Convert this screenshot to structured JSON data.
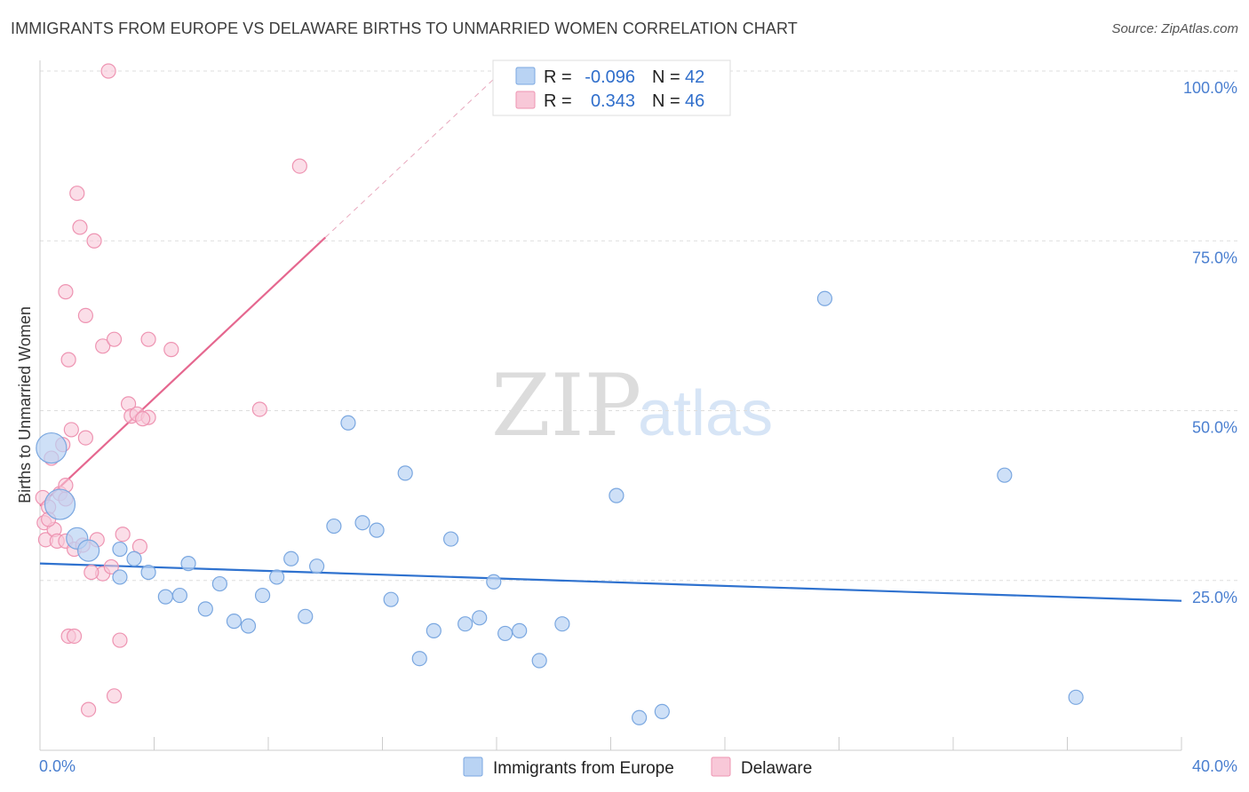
{
  "header": {
    "title": "IMMIGRANTS FROM EUROPE VS DELAWARE BIRTHS TO UNMARRIED WOMEN CORRELATION CHART",
    "source": "Source: ZipAtlas.com"
  },
  "watermark": {
    "zip": "ZIP",
    "atlas": "atlas"
  },
  "colors": {
    "blue_fill": "#b9d3f3",
    "blue_stroke": "#7aa7e0",
    "blue_line": "#2f72cf",
    "pink_fill": "#f8c8d8",
    "pink_stroke": "#ee94b2",
    "pink_line": "#e5678f",
    "tick_text": "#4a7fd0",
    "grid": "#dddddd"
  },
  "legend": {
    "rows": [
      {
        "r_label": "R =",
        "r_value": "-0.096",
        "n_label": "N =",
        "n_value": "42"
      },
      {
        "r_label": "R =",
        "r_value": "0.343",
        "n_label": "N =",
        "n_value": "46"
      }
    ]
  },
  "chart_data": {
    "type": "scatter",
    "title": "IMMIGRANTS FROM EUROPE VS DELAWARE BIRTHS TO UNMARRIED WOMEN CORRELATION CHART",
    "xlabel": "",
    "ylabel": "Births to Unmarried Women",
    "xlim": [
      0,
      40
    ],
    "ylim": [
      0,
      100
    ],
    "x_tick_labels": {
      "min": "0.0%",
      "max": "40.0%"
    },
    "y_tick_labels": [
      "100.0%",
      "75.0%",
      "50.0%",
      "25.0%"
    ],
    "y_tick_values": [
      100,
      75,
      50,
      25
    ],
    "grid": true,
    "series": [
      {
        "name": "Immigrants from Europe",
        "color": "blue",
        "trend": {
          "x": [
            0,
            40
          ],
          "y": [
            27.5,
            22.0
          ],
          "dashed_extension": false
        },
        "points": [
          [
            0.4,
            44.5,
            3
          ],
          [
            0.7,
            36.2,
            3
          ],
          [
            1.3,
            31.2,
            2
          ],
          [
            1.7,
            29.4,
            2
          ],
          [
            2.8,
            29.6,
            1
          ],
          [
            2.8,
            25.5,
            1
          ],
          [
            3.3,
            28.2,
            1
          ],
          [
            3.8,
            26.2,
            1
          ],
          [
            4.4,
            22.6,
            1
          ],
          [
            4.9,
            22.8,
            1
          ],
          [
            5.2,
            27.5,
            1
          ],
          [
            5.8,
            20.8,
            1
          ],
          [
            6.3,
            24.5,
            1
          ],
          [
            6.8,
            19.0,
            1
          ],
          [
            7.3,
            18.3,
            1
          ],
          [
            7.8,
            22.8,
            1
          ],
          [
            8.3,
            25.5,
            1
          ],
          [
            8.8,
            28.2,
            1
          ],
          [
            9.3,
            19.7,
            1
          ],
          [
            9.7,
            27.1,
            1
          ],
          [
            10.3,
            33.0,
            1
          ],
          [
            10.8,
            48.2,
            1
          ],
          [
            11.3,
            33.5,
            1
          ],
          [
            11.8,
            32.4,
            1
          ],
          [
            12.3,
            22.2,
            1
          ],
          [
            12.8,
            40.8,
            1
          ],
          [
            13.3,
            13.5,
            1
          ],
          [
            13.8,
            17.6,
            1
          ],
          [
            14.4,
            31.1,
            1
          ],
          [
            14.9,
            18.6,
            1
          ],
          [
            15.4,
            19.5,
            1
          ],
          [
            15.9,
            24.8,
            1
          ],
          [
            16.3,
            17.2,
            1
          ],
          [
            16.8,
            17.6,
            1
          ],
          [
            17.5,
            13.2,
            1
          ],
          [
            18.3,
            18.6,
            1
          ],
          [
            20.2,
            37.5,
            1
          ],
          [
            21.0,
            4.8,
            1
          ],
          [
            21.8,
            5.7,
            1
          ],
          [
            27.5,
            66.5,
            1
          ],
          [
            33.8,
            40.5,
            1
          ],
          [
            36.3,
            7.8,
            1
          ]
        ]
      },
      {
        "name": "Delaware",
        "color": "pink",
        "trend": {
          "x": [
            0,
            10
          ],
          "y": [
            36.0,
            75.5
          ],
          "dashed_to": [
            16.2,
            100.0
          ]
        },
        "points": [
          [
            0.1,
            37.2,
            1
          ],
          [
            0.15,
            33.5,
            1
          ],
          [
            0.2,
            31.0,
            1
          ],
          [
            0.3,
            35.8,
            1
          ],
          [
            0.4,
            43.0,
            1
          ],
          [
            0.5,
            32.5,
            1
          ],
          [
            0.6,
            30.8,
            1
          ],
          [
            0.7,
            37.8,
            1
          ],
          [
            0.8,
            45.0,
            1
          ],
          [
            0.9,
            30.8,
            1
          ],
          [
            0.9,
            37.0,
            1
          ],
          [
            0.9,
            39.0,
            1
          ],
          [
            0.9,
            67.5,
            1
          ],
          [
            1.0,
            57.5,
            1
          ],
          [
            1.0,
            16.8,
            1
          ],
          [
            1.1,
            47.2,
            1
          ],
          [
            1.2,
            16.8,
            1
          ],
          [
            1.3,
            82.0,
            1
          ],
          [
            1.4,
            77.0,
            1
          ],
          [
            1.6,
            64.0,
            1
          ],
          [
            1.6,
            46.0,
            1
          ],
          [
            1.7,
            6.0,
            1
          ],
          [
            1.9,
            75.0,
            1
          ],
          [
            2.2,
            26.0,
            1
          ],
          [
            2.2,
            59.5,
            1
          ],
          [
            2.4,
            100.0,
            1
          ],
          [
            2.5,
            27.0,
            1
          ],
          [
            2.6,
            60.5,
            1
          ],
          [
            2.6,
            8.0,
            1
          ],
          [
            2.8,
            16.2,
            1
          ],
          [
            2.9,
            31.8,
            1
          ],
          [
            3.1,
            51.0,
            1
          ],
          [
            3.2,
            49.2,
            1
          ],
          [
            3.4,
            49.5,
            1
          ],
          [
            3.5,
            30.0,
            1
          ],
          [
            3.8,
            60.5,
            1
          ],
          [
            3.8,
            49.0,
            1
          ],
          [
            4.6,
            59.0,
            1
          ],
          [
            7.7,
            50.2,
            1
          ],
          [
            9.1,
            86.0,
            1
          ],
          [
            1.2,
            29.6,
            1
          ],
          [
            1.5,
            30.2,
            1
          ],
          [
            0.3,
            34.0,
            1
          ],
          [
            2.0,
            31.0,
            1
          ],
          [
            3.6,
            48.8,
            1
          ],
          [
            1.8,
            26.2,
            1
          ]
        ]
      }
    ]
  },
  "bottom_legend": {
    "items": [
      {
        "label": "Immigrants from Europe"
      },
      {
        "label": "Delaware"
      }
    ]
  }
}
